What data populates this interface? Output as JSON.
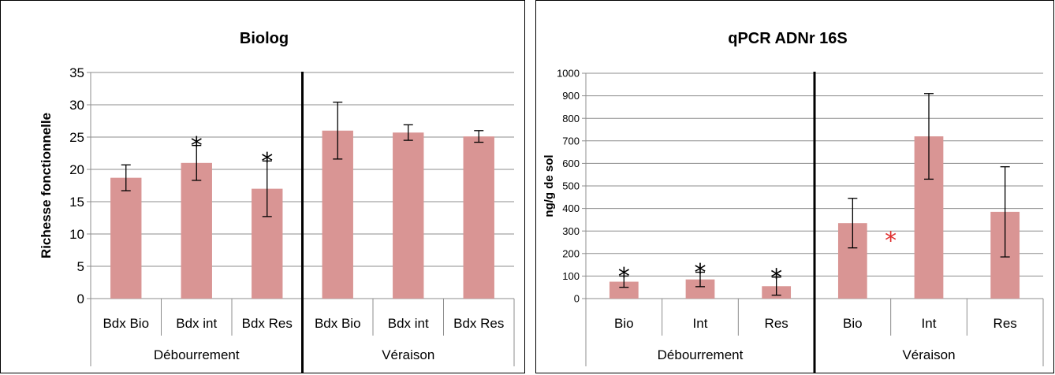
{
  "chart_data": [
    {
      "type": "bar",
      "title": "Biolog",
      "ylabel": "Richesse fonctionnelle",
      "xlabel": "",
      "ylim": [
        0,
        35
      ],
      "yticks": [
        0,
        5,
        10,
        15,
        20,
        25,
        30,
        35
      ],
      "grid": true,
      "categories": [
        "Bdx Bio",
        "Bdx int",
        "Bdx Res",
        "Bdx Bio",
        "Bdx int",
        "Bdx Res"
      ],
      "groups": [
        "Débourrement",
        "Véraison"
      ],
      "values": [
        18.7,
        21.0,
        17.0,
        26.0,
        25.7,
        25.1
      ],
      "errors": [
        2.0,
        2.7,
        4.3,
        4.4,
        1.2,
        0.9
      ],
      "significance": [
        "",
        "*",
        "*",
        "",
        "",
        ""
      ],
      "bar_color": "#d99594",
      "significance_color": "#000000"
    },
    {
      "type": "bar",
      "title": "qPCR ADNr 16S",
      "ylabel": "ng/g de sol",
      "xlabel": "",
      "ylim": [
        0,
        1000
      ],
      "yticks": [
        0,
        100,
        200,
        300,
        400,
        500,
        600,
        700,
        800,
        900,
        1000
      ],
      "grid": true,
      "categories": [
        "Bio",
        "Int",
        "Res",
        "Bio",
        "Int",
        "Res"
      ],
      "groups": [
        "Débourrement",
        "Véraison"
      ],
      "values": [
        75,
        85,
        55,
        335,
        720,
        385
      ],
      "errors": [
        25,
        32,
        40,
        110,
        190,
        200
      ],
      "significance": [
        "*",
        "*",
        "*",
        "",
        "",
        ""
      ],
      "extra_marks": [
        {
          "text": "*",
          "between": [
            3,
            4
          ],
          "value": 280,
          "color": "#e03030"
        }
      ],
      "bar_color": "#d99594",
      "significance_color": "#000000"
    }
  ]
}
